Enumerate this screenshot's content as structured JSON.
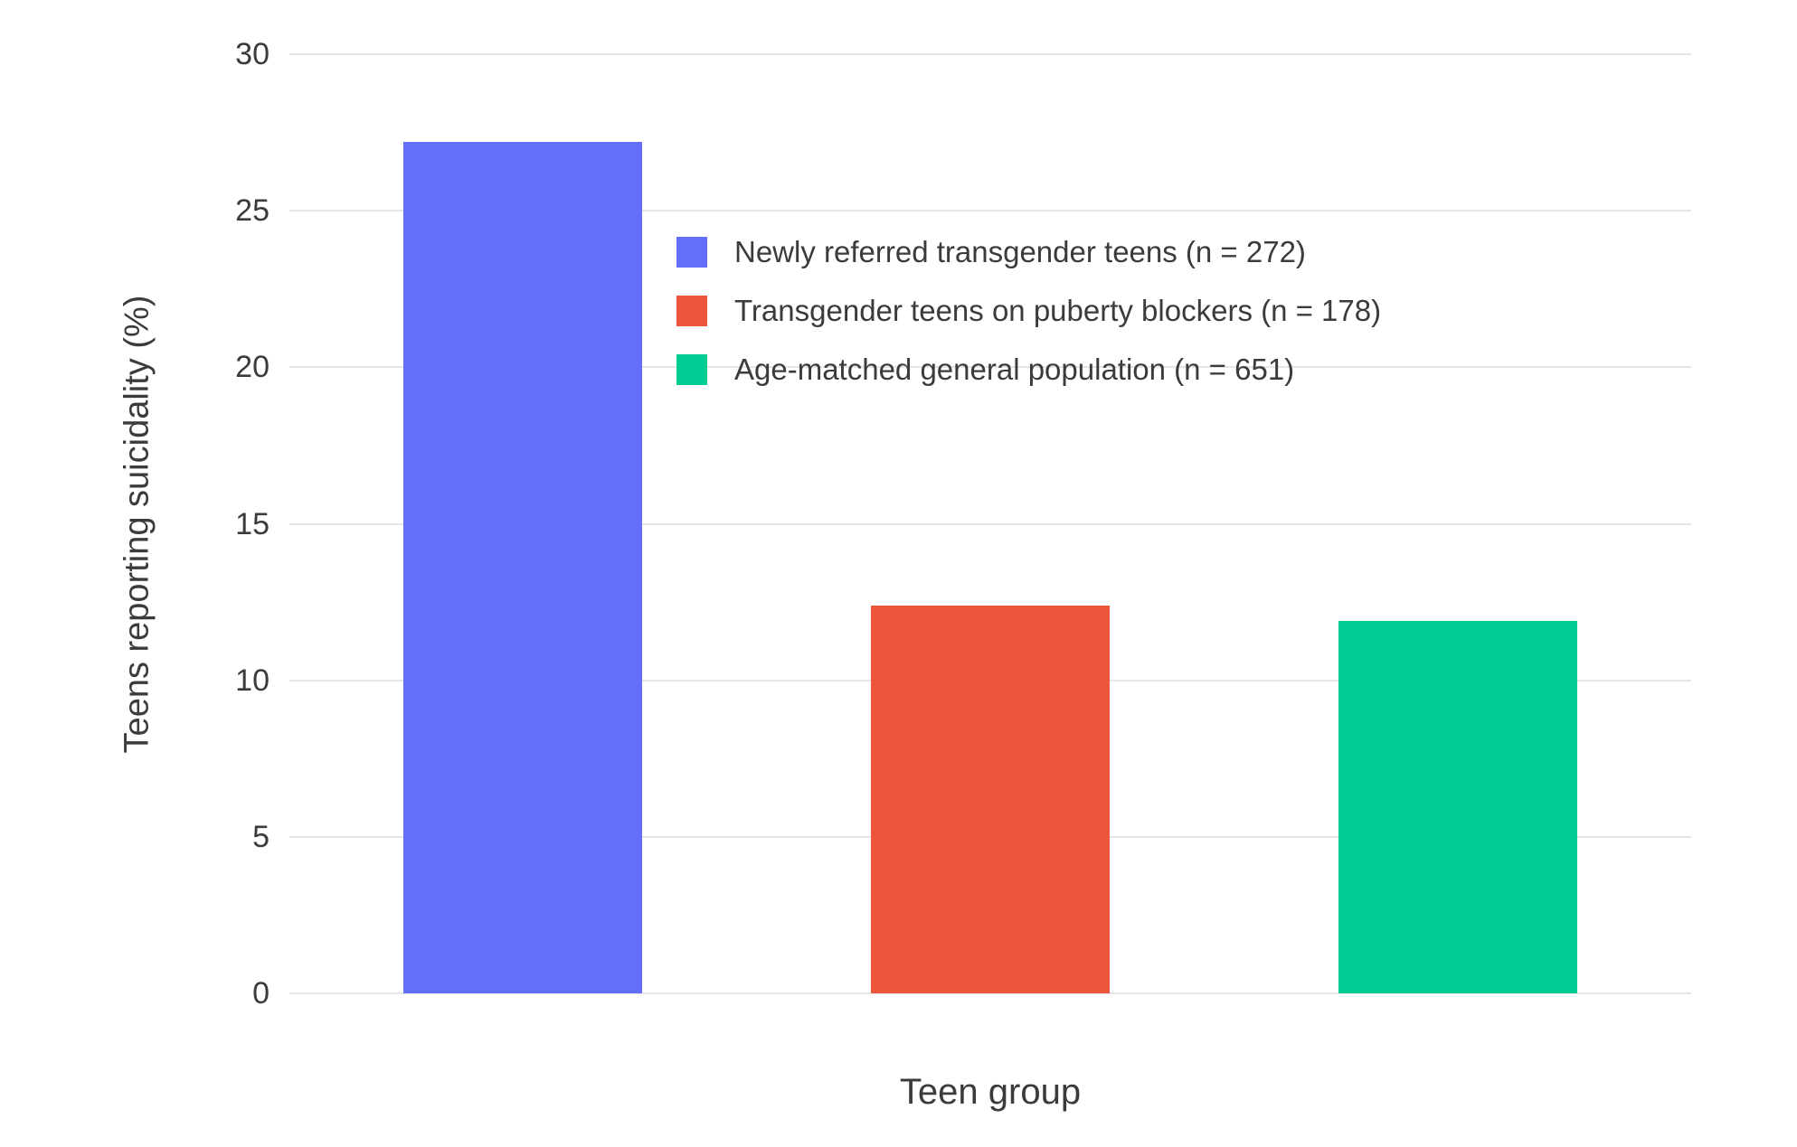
{
  "chart_data": {
    "type": "bar",
    "title": "",
    "xlabel": "Teen group",
    "ylabel": "Teens reporting suicidality (%)",
    "ylim": [
      0,
      30
    ],
    "yticks": [
      0,
      5,
      10,
      15,
      20,
      25,
      30
    ],
    "grid": true,
    "legend_position": "inside-top-center",
    "background": "#ffffff",
    "gridline_color": "#e6e6e6",
    "text_color": "#3b3b3b",
    "series": [
      {
        "name": "Newly referred transgender teens (n = 272)",
        "value": 27.2,
        "color": "#636EFA"
      },
      {
        "name": "Transgender teens on puberty blockers (n = 178)",
        "value": 12.4,
        "color": "#EF553B"
      },
      {
        "name": "Age-matched general population (n = 651)",
        "value": 11.9,
        "color": "#00CC96"
      }
    ]
  }
}
